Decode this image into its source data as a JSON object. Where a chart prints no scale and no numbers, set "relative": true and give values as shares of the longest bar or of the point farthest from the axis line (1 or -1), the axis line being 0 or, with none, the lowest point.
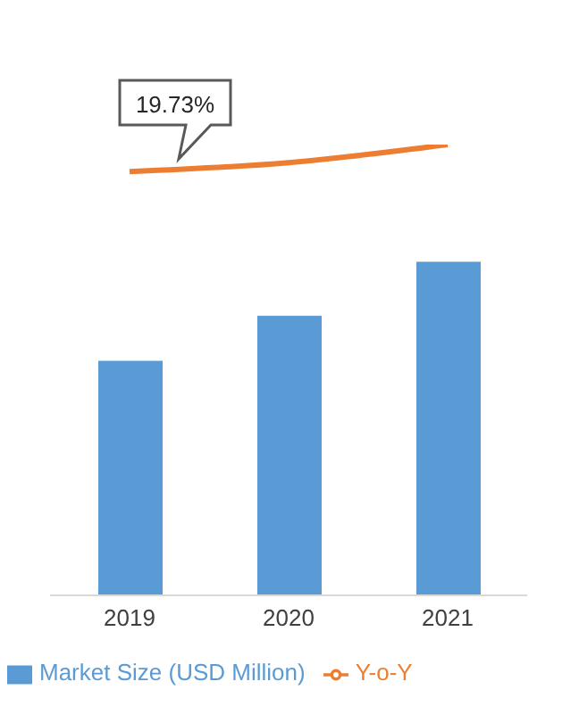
{
  "chart_data": {
    "type": "bar",
    "categories": [
      "2019",
      "2020",
      "2021"
    ],
    "relative": true,
    "series": [
      {
        "name": "Market Size (USD Million)",
        "color": "#5b9bd5",
        "values": [
          0.52,
          0.62,
          0.74
        ]
      },
      {
        "name": "Y-o-Y",
        "type": "line",
        "color": "#ed7d31",
        "values": [
          0.94,
          0.96,
          1
        ]
      }
    ],
    "annotations": [
      "19.73%"
    ],
    "legend": "bottom",
    "marker": "none"
  }
}
